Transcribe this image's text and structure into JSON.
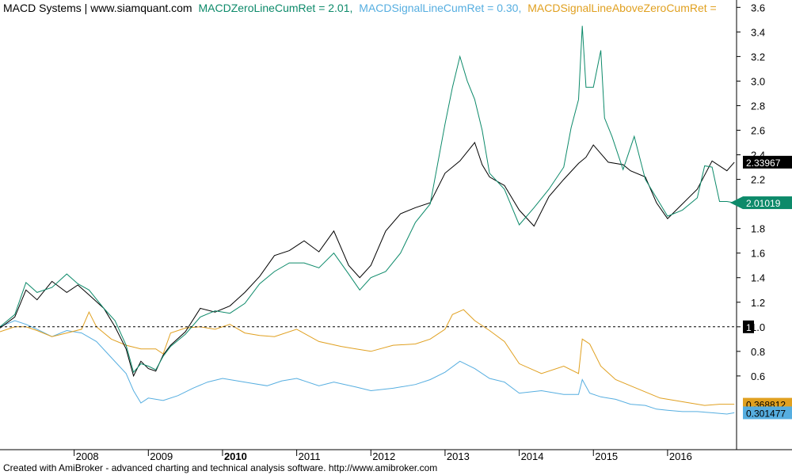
{
  "header": {
    "system": "MACD Systems | www.siamquant.com",
    "items": [
      {
        "text": "MACDZeroLineCumRet = 2.01,",
        "color": "#0d8a6a"
      },
      {
        "text": "MACDSignalLineCumRet = 0.30,",
        "color": "#56aee0"
      },
      {
        "text": "MACDSignalLineAboveZeroCumRet =",
        "color": "#e0a020"
      }
    ]
  },
  "footer": "Created with AmiBroker - advanced charting and technical analysis software. http://www.amibroker.com",
  "colors": {
    "benchmark": "#000000",
    "zero_line": "#0d8a6a",
    "signal_line": "#56aee0",
    "signal_above_zero": "#e0a020",
    "reference_line": "#000000"
  },
  "chart_data": {
    "type": "line",
    "x_unit": "year",
    "xlim": [
      2007.0,
      2016.93
    ],
    "ylim": [
      0.0,
      3.66
    ],
    "yticks": [
      0.6,
      0.8,
      1.0,
      1.2,
      1.4,
      1.6,
      1.8,
      2.0,
      2.2,
      2.4,
      2.6,
      2.8,
      3.0,
      3.2,
      3.4,
      3.6
    ],
    "ytick_labels": [
      "0.6",
      "0.8",
      "1.0",
      "1.2",
      "1.4",
      "1.6",
      "1.8",
      "2.0",
      "2.2",
      "2.4",
      "2.6",
      "2.8",
      "3.0",
      "3.2",
      "3.4",
      "3.6"
    ],
    "xticks": [
      {
        "x": 2008,
        "label": "2008",
        "bold": false
      },
      {
        "x": 2009,
        "label": "2009",
        "bold": false
      },
      {
        "x": 2010,
        "label": "2010",
        "bold": true
      },
      {
        "x": 2011,
        "label": "2011",
        "bold": false
      },
      {
        "x": 2012,
        "label": "2012",
        "bold": false
      },
      {
        "x": 2013,
        "label": "2013",
        "bold": false
      },
      {
        "x": 2014,
        "label": "2014",
        "bold": false
      },
      {
        "x": 2015,
        "label": "2015",
        "bold": false
      },
      {
        "x": 2016,
        "label": "2016",
        "bold": false
      }
    ],
    "reference_line": {
      "y": 1.0,
      "style": "dashed",
      "label": "1"
    },
    "grid": false,
    "series": [
      {
        "key": "benchmark",
        "color": "#000000",
        "last_value_label": "2.33967",
        "x": [
          2007.0,
          2007.2,
          2007.35,
          2007.5,
          2007.7,
          2007.9,
          2008.05,
          2008.2,
          2008.4,
          2008.55,
          2008.7,
          2008.8,
          2008.9,
          2009.0,
          2009.1,
          2009.2,
          2009.3,
          2009.5,
          2009.7,
          2009.9,
          2010.1,
          2010.3,
          2010.5,
          2010.7,
          2010.9,
          2011.1,
          2011.3,
          2011.5,
          2011.7,
          2011.85,
          2012.0,
          2012.2,
          2012.4,
          2012.6,
          2012.8,
          2013.0,
          2013.2,
          2013.4,
          2013.5,
          2013.6,
          2013.8,
          2014.0,
          2014.2,
          2014.4,
          2014.6,
          2014.8,
          2014.9,
          2015.0,
          2015.2,
          2015.4,
          2015.5,
          2015.7,
          2015.85,
          2016.0,
          2016.2,
          2016.4,
          2016.6,
          2016.8,
          2016.9
        ],
        "y": [
          0.99,
          1.08,
          1.3,
          1.22,
          1.37,
          1.28,
          1.34,
          1.26,
          1.15,
          1.0,
          0.82,
          0.6,
          0.72,
          0.66,
          0.64,
          0.77,
          0.85,
          0.96,
          1.15,
          1.12,
          1.17,
          1.28,
          1.41,
          1.58,
          1.62,
          1.7,
          1.61,
          1.78,
          1.5,
          1.4,
          1.5,
          1.78,
          1.92,
          1.97,
          2.01,
          2.25,
          2.35,
          2.5,
          2.32,
          2.22,
          2.15,
          1.95,
          1.82,
          2.06,
          2.2,
          2.33,
          2.38,
          2.48,
          2.34,
          2.32,
          2.27,
          2.22,
          2.01,
          1.88,
          2.0,
          2.12,
          2.35,
          2.27,
          2.34
        ]
      },
      {
        "key": "zero_line",
        "color": "#0d8a6a",
        "last_value_label": "2.01019",
        "x": [
          2007.0,
          2007.2,
          2007.35,
          2007.5,
          2007.7,
          2007.9,
          2008.05,
          2008.2,
          2008.4,
          2008.55,
          2008.7,
          2008.8,
          2008.9,
          2009.0,
          2009.1,
          2009.2,
          2009.3,
          2009.5,
          2009.7,
          2009.9,
          2010.1,
          2010.3,
          2010.5,
          2010.7,
          2010.9,
          2011.1,
          2011.3,
          2011.5,
          2011.7,
          2011.85,
          2012.0,
          2012.2,
          2012.4,
          2012.6,
          2012.8,
          2013.0,
          2013.1,
          2013.2,
          2013.3,
          2013.4,
          2013.5,
          2013.6,
          2013.8,
          2014.0,
          2014.2,
          2014.4,
          2014.6,
          2014.7,
          2014.8,
          2014.85,
          2014.9,
          2015.0,
          2015.1,
          2015.15,
          2015.25,
          2015.4,
          2015.55,
          2015.7,
          2015.85,
          2016.0,
          2016.2,
          2016.4,
          2016.5,
          2016.6,
          2016.7,
          2016.8,
          2016.9
        ],
        "y": [
          1.0,
          1.1,
          1.36,
          1.28,
          1.32,
          1.43,
          1.35,
          1.3,
          1.15,
          1.05,
          0.85,
          0.63,
          0.7,
          0.68,
          0.65,
          0.76,
          0.84,
          0.94,
          1.08,
          1.13,
          1.11,
          1.19,
          1.35,
          1.45,
          1.52,
          1.52,
          1.48,
          1.6,
          1.43,
          1.3,
          1.4,
          1.45,
          1.6,
          1.85,
          2.0,
          2.65,
          2.95,
          3.2,
          3.0,
          2.85,
          2.6,
          2.25,
          2.12,
          1.83,
          1.97,
          2.12,
          2.3,
          2.62,
          2.85,
          3.45,
          2.95,
          2.95,
          3.25,
          2.7,
          2.55,
          2.28,
          2.55,
          2.2,
          2.05,
          1.9,
          1.95,
          2.05,
          2.31,
          2.3,
          2.02,
          2.02,
          2.01
        ]
      },
      {
        "key": "signal_line",
        "color": "#56aee0",
        "last_value_label": "0.301477",
        "x": [
          2007.0,
          2007.2,
          2007.35,
          2007.5,
          2007.7,
          2007.9,
          2008.1,
          2008.3,
          2008.5,
          2008.7,
          2008.8,
          2008.9,
          2009.0,
          2009.2,
          2009.4,
          2009.6,
          2009.8,
          2010.0,
          2010.2,
          2010.4,
          2010.6,
          2010.8,
          2011.0,
          2011.3,
          2011.5,
          2011.8,
          2012.0,
          2012.3,
          2012.6,
          2012.8,
          2013.0,
          2013.2,
          2013.4,
          2013.6,
          2013.8,
          2014.0,
          2014.3,
          2014.6,
          2014.8,
          2014.85,
          2014.95,
          2015.1,
          2015.3,
          2015.5,
          2015.7,
          2015.85,
          2016.0,
          2016.2,
          2016.4,
          2016.6,
          2016.8,
          2016.9
        ],
        "y": [
          1.0,
          1.05,
          1.02,
          0.98,
          0.92,
          0.97,
          0.95,
          0.88,
          0.75,
          0.62,
          0.48,
          0.38,
          0.42,
          0.4,
          0.44,
          0.5,
          0.55,
          0.58,
          0.56,
          0.54,
          0.52,
          0.56,
          0.58,
          0.52,
          0.55,
          0.51,
          0.48,
          0.5,
          0.53,
          0.57,
          0.63,
          0.72,
          0.66,
          0.58,
          0.55,
          0.46,
          0.48,
          0.45,
          0.45,
          0.57,
          0.46,
          0.43,
          0.41,
          0.37,
          0.36,
          0.33,
          0.32,
          0.31,
          0.31,
          0.3,
          0.29,
          0.3
        ]
      },
      {
        "key": "signal_above_zero",
        "color": "#e0a020",
        "last_value_label": "0.368812",
        "x": [
          2007.0,
          2007.2,
          2007.35,
          2007.5,
          2007.7,
          2007.9,
          2008.1,
          2008.2,
          2008.3,
          2008.5,
          2008.7,
          2008.9,
          2009.1,
          2009.2,
          2009.3,
          2009.5,
          2009.7,
          2009.9,
          2010.1,
          2010.3,
          2010.5,
          2010.7,
          2011.0,
          2011.3,
          2011.6,
          2011.8,
          2012.0,
          2012.3,
          2012.6,
          2012.8,
          2013.0,
          2013.1,
          2013.25,
          2013.4,
          2013.6,
          2013.8,
          2014.0,
          2014.3,
          2014.6,
          2014.8,
          2014.85,
          2014.95,
          2015.1,
          2015.3,
          2015.5,
          2015.7,
          2015.9,
          2016.1,
          2016.3,
          2016.5,
          2016.7,
          2016.9
        ],
        "y": [
          0.96,
          1.0,
          1.0,
          0.97,
          0.92,
          0.95,
          0.98,
          1.12,
          1.0,
          0.9,
          0.85,
          0.82,
          0.82,
          0.78,
          0.95,
          0.99,
          1.0,
          0.98,
          1.02,
          0.95,
          0.93,
          0.92,
          0.98,
          0.88,
          0.84,
          0.82,
          0.8,
          0.85,
          0.86,
          0.9,
          0.98,
          1.1,
          1.14,
          1.05,
          0.97,
          0.88,
          0.7,
          0.62,
          0.68,
          0.62,
          0.9,
          0.86,
          0.68,
          0.57,
          0.52,
          0.47,
          0.42,
          0.4,
          0.38,
          0.36,
          0.37,
          0.37
        ]
      }
    ]
  }
}
